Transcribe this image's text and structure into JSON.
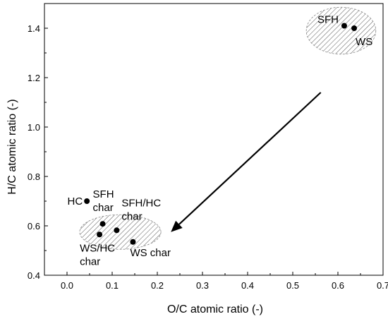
{
  "chart_data": {
    "type": "scatter",
    "xlabel": "O/C atomic ratio (-)",
    "ylabel": "H/C atomic ratio (-)",
    "xlim": [
      -0.05,
      0.7
    ],
    "ylim": [
      0.4,
      1.5
    ],
    "xticks": [
      0.0,
      0.1,
      0.2,
      0.3,
      0.4,
      0.5,
      0.6,
      0.7
    ],
    "yticks": [
      0.4,
      0.6,
      0.8,
      1.0,
      1.2,
      1.4
    ],
    "xtick_labels": [
      "0.0",
      "0.1",
      "0.2",
      "0.3",
      "0.4",
      "0.5",
      "0.6",
      "0.7"
    ],
    "ytick_labels": [
      "0.4",
      "0.6",
      "0.8",
      "1.0",
      "1.2",
      "1.4"
    ],
    "grid": false,
    "points": [
      {
        "label": [
          "SFH"
        ],
        "x": 0.614,
        "y": 1.41
      },
      {
        "label": [
          "WS"
        ],
        "x": 0.636,
        "y": 1.4
      },
      {
        "label": [
          "HC"
        ],
        "x": 0.044,
        "y": 0.7
      },
      {
        "label": [
          "SFH",
          "char"
        ],
        "x": 0.079,
        "y": 0.608
      },
      {
        "label": [
          "SFH/HC",
          "char"
        ],
        "x": 0.11,
        "y": 0.582
      },
      {
        "label": [
          "WS/HC",
          "char"
        ],
        "x": 0.072,
        "y": 0.565
      },
      {
        "label": [
          "WS char"
        ],
        "x": 0.146,
        "y": 0.535
      }
    ],
    "arrow": {
      "from": [
        0.562,
        1.14
      ],
      "to": [
        0.23,
        0.575
      ]
    },
    "regions": [
      {
        "cx": 0.607,
        "cy": 1.39,
        "rx": 0.077,
        "ry": 0.095
      },
      {
        "cx": 0.118,
        "cy": 0.575,
        "rx": 0.09,
        "ry": 0.07
      }
    ]
  }
}
